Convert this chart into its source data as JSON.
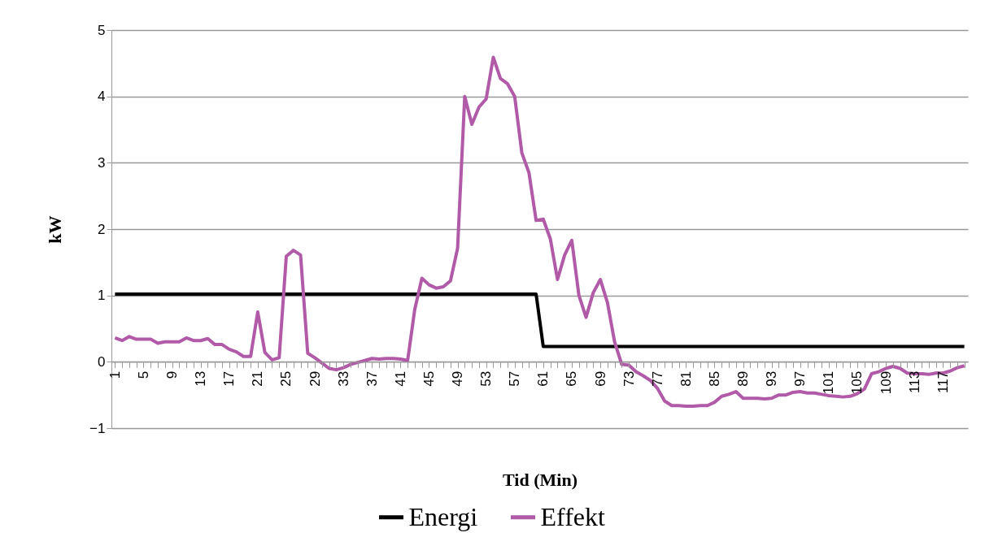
{
  "chart_data": {
    "type": "line",
    "xlabel": "Tid (Min)",
    "ylabel": "kW",
    "categories": [
      "1",
      null,
      null,
      null,
      "5",
      null,
      null,
      null,
      "9",
      null,
      null,
      null,
      "13",
      null,
      null,
      null,
      "17",
      null,
      null,
      null,
      "21",
      null,
      null,
      null,
      "25",
      null,
      null,
      null,
      "29",
      null,
      null,
      null,
      "33",
      null,
      null,
      null,
      "37",
      null,
      null,
      null,
      "41",
      null,
      null,
      null,
      "45",
      null,
      null,
      null,
      "49",
      null,
      null,
      null,
      "53",
      null,
      null,
      null,
      "57",
      null,
      null,
      null,
      "61",
      null,
      null,
      null,
      "65",
      null,
      null,
      null,
      "69",
      null,
      null,
      null,
      "73",
      null,
      null,
      null,
      "77",
      null,
      null,
      null,
      "81",
      null,
      null,
      null,
      "85",
      null,
      null,
      null,
      "89",
      null,
      null,
      null,
      "93",
      null,
      null,
      null,
      "97",
      null,
      null,
      null,
      "101",
      null,
      null,
      null,
      "105",
      null,
      null,
      null,
      "109",
      null,
      null,
      null,
      "113",
      null,
      null,
      null,
      "117",
      null,
      null,
      null
    ],
    "series": [
      {
        "name": "Energi",
        "color": "#000000",
        "values": [
          1.02,
          1.02,
          1.02,
          1.02,
          1.02,
          1.02,
          1.02,
          1.02,
          1.02,
          1.02,
          1.02,
          1.02,
          1.02,
          1.02,
          1.02,
          1.02,
          1.02,
          1.02,
          1.02,
          1.02,
          1.02,
          1.02,
          1.02,
          1.02,
          1.02,
          1.02,
          1.02,
          1.02,
          1.02,
          1.02,
          1.02,
          1.02,
          1.02,
          1.02,
          1.02,
          1.02,
          1.02,
          1.02,
          1.02,
          1.02,
          1.02,
          1.02,
          1.02,
          1.02,
          1.02,
          1.02,
          1.02,
          1.02,
          1.02,
          1.02,
          1.02,
          1.02,
          1.02,
          1.02,
          1.02,
          1.02,
          1.02,
          1.02,
          1.02,
          1.02,
          0.23,
          0.23,
          0.23,
          0.23,
          0.23,
          0.23,
          0.23,
          0.23,
          0.23,
          0.23,
          0.23,
          0.23,
          0.23,
          0.23,
          0.23,
          0.23,
          0.23,
          0.23,
          0.23,
          0.23,
          0.23,
          0.23,
          0.23,
          0.23,
          0.23,
          0.23,
          0.23,
          0.23,
          0.23,
          0.23,
          0.23,
          0.23,
          0.23,
          0.23,
          0.23,
          0.23,
          0.23,
          0.23,
          0.23,
          0.23,
          0.23,
          0.23,
          0.23,
          0.23,
          0.23,
          0.23,
          0.23,
          0.23,
          0.23,
          0.23,
          0.23,
          0.23,
          0.23,
          0.23,
          0.23,
          0.23,
          0.23,
          0.23,
          0.23,
          0.23
        ]
      },
      {
        "name": "Effekt",
        "color": "#b05aa8",
        "values": [
          0.36,
          0.32,
          0.38,
          0.34,
          0.34,
          0.34,
          0.28,
          0.3,
          0.3,
          0.3,
          0.36,
          0.32,
          0.32,
          0.35,
          0.26,
          0.26,
          0.19,
          0.15,
          0.08,
          0.08,
          0.75,
          0.14,
          0.03,
          0.06,
          1.59,
          1.68,
          1.61,
          0.13,
          0.06,
          -0.02,
          -0.1,
          -0.12,
          -0.09,
          -0.04,
          -0.01,
          0.02,
          0.05,
          0.04,
          0.05,
          0.05,
          0.04,
          0.02,
          0.79,
          1.26,
          1.16,
          1.11,
          1.13,
          1.22,
          1.71,
          4.0,
          3.58,
          3.84,
          3.96,
          4.59,
          4.27,
          4.19,
          4.0,
          3.15,
          2.85,
          2.13,
          2.15,
          1.85,
          1.24,
          1.61,
          1.83,
          1.0,
          0.67,
          1.04,
          1.24,
          0.89,
          0.3,
          -0.04,
          -0.05,
          -0.15,
          -0.21,
          -0.28,
          -0.4,
          -0.59,
          -0.66,
          -0.66,
          -0.67,
          -0.67,
          -0.66,
          -0.66,
          -0.61,
          -0.52,
          -0.49,
          -0.45,
          -0.55,
          -0.55,
          -0.55,
          -0.56,
          -0.55,
          -0.5,
          -0.5,
          -0.46,
          -0.45,
          -0.47,
          -0.47,
          -0.49,
          -0.51,
          -0.52,
          -0.53,
          -0.52,
          -0.48,
          -0.41,
          -0.18,
          -0.15,
          -0.1,
          -0.07,
          -0.1,
          -0.17,
          -0.18,
          -0.18,
          -0.19,
          -0.17,
          -0.17,
          -0.14,
          -0.09,
          -0.06
        ]
      }
    ],
    "ylim": [
      -1,
      5
    ],
    "yticks": [
      -1,
      0,
      1,
      2,
      3,
      4,
      5
    ],
    "grid": "y",
    "legend": "bottom"
  }
}
